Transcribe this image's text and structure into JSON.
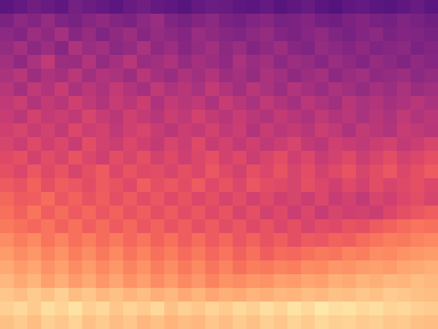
{
  "chart_data": {
    "type": "heatmap",
    "tick_labels": false,
    "color_range": [
      0,
      100
    ],
    "cells": [
      [
        28,
        30,
        33,
        31,
        29,
        34,
        32,
        30,
        28,
        31,
        33,
        30,
        29,
        27,
        30,
        32,
        31,
        29,
        28,
        30,
        27,
        29,
        31,
        28,
        26,
        29,
        30,
        28,
        27,
        29,
        31,
        28
      ],
      [
        36,
        40,
        38,
        42,
        37,
        35,
        39,
        41,
        38,
        36,
        40,
        43,
        37,
        35,
        38,
        40,
        36,
        34,
        37,
        39,
        35,
        36,
        38,
        34,
        33,
        36,
        38,
        35,
        34,
        37,
        35,
        33
      ],
      [
        40,
        38,
        44,
        41,
        46,
        39,
        42,
        37,
        41,
        44,
        39,
        42,
        40,
        38,
        43,
        41,
        39,
        37,
        40,
        42,
        38,
        36,
        39,
        41,
        37,
        35,
        38,
        40,
        36,
        38,
        37,
        35
      ],
      [
        42,
        46,
        40,
        44,
        39,
        48,
        43,
        45,
        40,
        42,
        47,
        41,
        44,
        39,
        42,
        45,
        40,
        43,
        38,
        41,
        44,
        39,
        37,
        42,
        40,
        38,
        41,
        37,
        39,
        40,
        36,
        38
      ],
      [
        45,
        41,
        47,
        52,
        44,
        43,
        49,
        42,
        46,
        50,
        43,
        45,
        48,
        42,
        46,
        44,
        41,
        47,
        43,
        45,
        40,
        44,
        42,
        39,
        43,
        41,
        38,
        42,
        40,
        37,
        41,
        39
      ],
      [
        47,
        50,
        44,
        48,
        46,
        51,
        45,
        49,
        47,
        44,
        50,
        46,
        43,
        48,
        45,
        49,
        44,
        46,
        42,
        47,
        45,
        41,
        44,
        46,
        40,
        43,
        45,
        41,
        42,
        44,
        40,
        42
      ],
      [
        50,
        46,
        52,
        49,
        54,
        47,
        51,
        48,
        53,
        49,
        46,
        52,
        48,
        50,
        47,
        53,
        49,
        45,
        50,
        47,
        44,
        49,
        46,
        43,
        47,
        45,
        42,
        46,
        44,
        47,
        43,
        45
      ],
      [
        52,
        55,
        49,
        53,
        50,
        56,
        52,
        49,
        54,
        51,
        55,
        48,
        53,
        50,
        52,
        48,
        54,
        50,
        47,
        52,
        49,
        46,
        51,
        48,
        45,
        50,
        47,
        49,
        46,
        48,
        50,
        47
      ],
      [
        54,
        51,
        57,
        53,
        55,
        52,
        58,
        54,
        51,
        56,
        53,
        50,
        55,
        52,
        57,
        53,
        50,
        54,
        51,
        49,
        53,
        50,
        48,
        52,
        49,
        51,
        47,
        50,
        48,
        52,
        49,
        51
      ],
      [
        56,
        58,
        54,
        57,
        53,
        59,
        55,
        57,
        52,
        56,
        58,
        54,
        51,
        55,
        53,
        57,
        52,
        55,
        49,
        54,
        51,
        53,
        50,
        55,
        52,
        48,
        53,
        51,
        49,
        54,
        52,
        50
      ],
      [
        58,
        55,
        60,
        56,
        59,
        54,
        61,
        57,
        55,
        59,
        56,
        53,
        58,
        55,
        60,
        54,
        57,
        53,
        56,
        52,
        55,
        58,
        53,
        51,
        56,
        54,
        52,
        55,
        57,
        53,
        55,
        58
      ],
      [
        60,
        62,
        57,
        61,
        58,
        63,
        59,
        56,
        61,
        58,
        62,
        57,
        60,
        56,
        59,
        62,
        57,
        60,
        55,
        58,
        61,
        56,
        59,
        54,
        57,
        60,
        55,
        58,
        61,
        57,
        59,
        62
      ],
      [
        62,
        59,
        64,
        60,
        63,
        58,
        62,
        65,
        59,
        63,
        60,
        61,
        58,
        62,
        59,
        64,
        60,
        57,
        62,
        59,
        63,
        58,
        61,
        57,
        60,
        63,
        58,
        61,
        64,
        59,
        62,
        65
      ],
      [
        65,
        63,
        67,
        62,
        66,
        64,
        61,
        65,
        63,
        60,
        66,
        62,
        64,
        61,
        65,
        60,
        63,
        59,
        64,
        61,
        60,
        58,
        62,
        59,
        56,
        60,
        57,
        61,
        58,
        60,
        62,
        59
      ],
      [
        68,
        65,
        66,
        69,
        64,
        67,
        63,
        66,
        62,
        65,
        61,
        64,
        60,
        63,
        59,
        62,
        58,
        61,
        57,
        60,
        56,
        58,
        55,
        59,
        54,
        57,
        53,
        58,
        56,
        59,
        61,
        58
      ],
      [
        70,
        67,
        71,
        66,
        69,
        65,
        68,
        64,
        67,
        63,
        66,
        62,
        65,
        61,
        64,
        60,
        63,
        58,
        62,
        57,
        60,
        55,
        59,
        54,
        58,
        56,
        57,
        55,
        59,
        62,
        64,
        66
      ],
      [
        72,
        70,
        68,
        71,
        67,
        70,
        66,
        69,
        65,
        68,
        64,
        67,
        63,
        66,
        62,
        65,
        61,
        64,
        60,
        63,
        59,
        62,
        58,
        61,
        60,
        63,
        62,
        65,
        67,
        69,
        71,
        70
      ],
      [
        76,
        73,
        75,
        71,
        74,
        70,
        73,
        69,
        72,
        68,
        71,
        67,
        70,
        66,
        69,
        65,
        68,
        64,
        67,
        63,
        66,
        62,
        65,
        64,
        67,
        66,
        69,
        71,
        73,
        72,
        74,
        75
      ],
      [
        79,
        76,
        78,
        74,
        77,
        73,
        76,
        72,
        75,
        71,
        74,
        70,
        73,
        69,
        72,
        68,
        71,
        67,
        70,
        66,
        69,
        68,
        70,
        72,
        71,
        74,
        73,
        76,
        75,
        77,
        78,
        79
      ],
      [
        82,
        79,
        81,
        77,
        80,
        76,
        79,
        75,
        78,
        74,
        77,
        73,
        76,
        72,
        75,
        71,
        74,
        70,
        73,
        72,
        74,
        73,
        76,
        75,
        78,
        77,
        79,
        80,
        79,
        81,
        82,
        83
      ],
      [
        85,
        82,
        84,
        80,
        83,
        79,
        82,
        78,
        81,
        77,
        80,
        76,
        79,
        75,
        78,
        74,
        77,
        76,
        78,
        77,
        80,
        79,
        81,
        80,
        83,
        82,
        84,
        83,
        85,
        84,
        86,
        85
      ],
      [
        88,
        86,
        89,
        87,
        90,
        86,
        88,
        85,
        87,
        84,
        86,
        83,
        85,
        82,
        84,
        81,
        83,
        82,
        84,
        83,
        85,
        84,
        86,
        85,
        87,
        86,
        88,
        87,
        89,
        88,
        87,
        86
      ],
      [
        90,
        92,
        89,
        93,
        91,
        94,
        90,
        92,
        88,
        91,
        89,
        92,
        87,
        90,
        88,
        91,
        89,
        92,
        90,
        93,
        91,
        94,
        92,
        95,
        93,
        94,
        92,
        93,
        91,
        92,
        90,
        89
      ],
      [
        87,
        89,
        86,
        90,
        88,
        91,
        87,
        89,
        86,
        88,
        85,
        87,
        84,
        86,
        85,
        88,
        86,
        89,
        87,
        90,
        88,
        91,
        89,
        92,
        90,
        91,
        89,
        90,
        88,
        89,
        87,
        86
      ]
    ]
  }
}
